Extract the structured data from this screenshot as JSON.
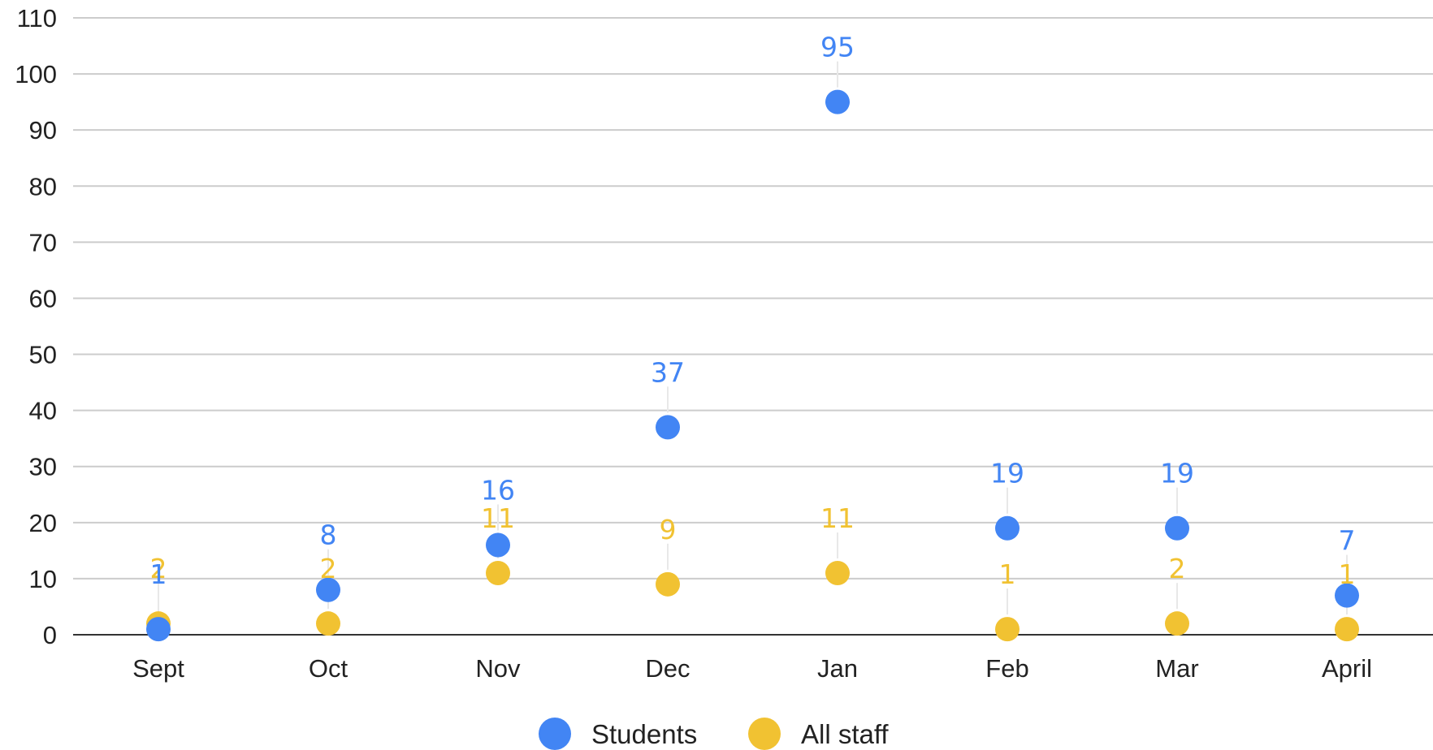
{
  "chart_data": {
    "type": "scatter",
    "categories": [
      "Sept",
      "Oct",
      "Nov",
      "Dec",
      "Jan",
      "Feb",
      "Mar",
      "April"
    ],
    "series": [
      {
        "name": "Students",
        "color": "#4285F4",
        "values": [
          1,
          8,
          16,
          37,
          95,
          19,
          19,
          7
        ]
      },
      {
        "name": "All staff",
        "color": "#F1C232",
        "values": [
          2,
          2,
          11,
          9,
          11,
          1,
          2,
          1
        ]
      }
    ],
    "title": "",
    "xlabel": "",
    "ylabel": "",
    "ylim": [
      0,
      110
    ],
    "yticks": [
      0,
      10,
      20,
      30,
      40,
      50,
      60,
      70,
      80,
      90,
      100,
      110
    ],
    "grid": true,
    "data_labels": true,
    "legend": "bottom"
  }
}
